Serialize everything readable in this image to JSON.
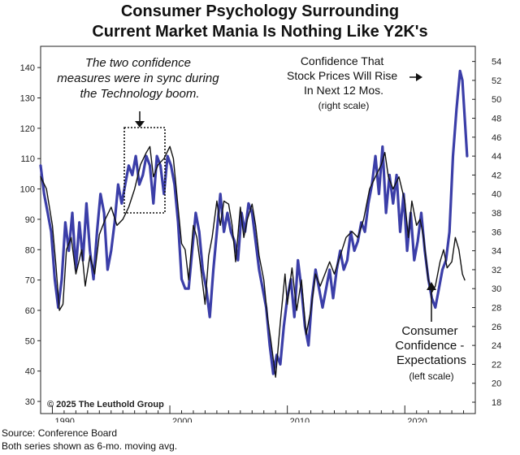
{
  "chart_data": {
    "type": "line",
    "title_line1": "Consumer Psychology Surrounding",
    "title_line2": "Current Market Mania Is Nothing Like Y2K's",
    "x_ticks": [
      "1990",
      "2000",
      "2010",
      "2020"
    ],
    "xlim": [
      1989,
      2026
    ],
    "left_axis": {
      "ticks": [
        30,
        40,
        50,
        60,
        70,
        80,
        90,
        100,
        110,
        120,
        130,
        140
      ],
      "ylim": [
        26,
        147
      ]
    },
    "right_axis": {
      "ticks": [
        18,
        20,
        22,
        24,
        26,
        28,
        30,
        32,
        34,
        36,
        38,
        40,
        42,
        44,
        46,
        48,
        50,
        52,
        54
      ],
      "ylim": [
        16.8,
        55.6
      ]
    },
    "grid": false,
    "annotation_sync": "The two confidence measures were in sync during the Technology boom.",
    "annotation_sync_lines": [
      "The two confidence",
      "measures were in sync during",
      "the Technology boom."
    ],
    "series": [
      {
        "name": "Consumer Confidence - Expectations",
        "label_lines": [
          "Consumer",
          "Confidence -",
          "Expectations"
        ],
        "scale_note": "(left scale)",
        "axis": "left",
        "color": "#111111",
        "points": [
          [
            1989.0,
            104
          ],
          [
            1989.5,
            100
          ],
          [
            1990.0,
            88
          ],
          [
            1990.3,
            75
          ],
          [
            1990.6,
            60
          ],
          [
            1990.9,
            62
          ],
          [
            1991.2,
            80
          ],
          [
            1991.6,
            84
          ],
          [
            1992.0,
            72
          ],
          [
            1992.5,
            80
          ],
          [
            1992.8,
            68
          ],
          [
            1993.2,
            78
          ],
          [
            1993.6,
            72
          ],
          [
            1994.0,
            85
          ],
          [
            1994.5,
            90
          ],
          [
            1995.0,
            94
          ],
          [
            1995.5,
            88
          ],
          [
            1996.0,
            90
          ],
          [
            1996.5,
            94
          ],
          [
            1997.0,
            100
          ],
          [
            1997.5,
            108
          ],
          [
            1998.0,
            112
          ],
          [
            1998.3,
            114
          ],
          [
            1998.6,
            104
          ],
          [
            1999.0,
            108
          ],
          [
            1999.5,
            110
          ],
          [
            2000.0,
            114
          ],
          [
            2000.3,
            110
          ],
          [
            2000.6,
            98
          ],
          [
            2001.0,
            82
          ],
          [
            2001.3,
            80
          ],
          [
            2001.6,
            70
          ],
          [
            2002.0,
            88
          ],
          [
            2002.3,
            84
          ],
          [
            2002.6,
            75
          ],
          [
            2003.0,
            62
          ],
          [
            2003.3,
            78
          ],
          [
            2003.6,
            84
          ],
          [
            2004.0,
            96
          ],
          [
            2004.3,
            88
          ],
          [
            2004.6,
            96
          ],
          [
            2005.0,
            95
          ],
          [
            2005.3,
            88
          ],
          [
            2005.6,
            76
          ],
          [
            2006.0,
            94
          ],
          [
            2006.3,
            84
          ],
          [
            2006.6,
            90
          ],
          [
            2007.0,
            95
          ],
          [
            2007.3,
            88
          ],
          [
            2007.6,
            78
          ],
          [
            2008.0,
            70
          ],
          [
            2008.3,
            58
          ],
          [
            2008.6,
            50
          ],
          [
            2009.0,
            38
          ],
          [
            2009.4,
            56
          ],
          [
            2009.8,
            72
          ],
          [
            2010.0,
            62
          ],
          [
            2010.4,
            74
          ],
          [
            2010.8,
            60
          ],
          [
            2011.2,
            70
          ],
          [
            2011.6,
            52
          ],
          [
            2012.0,
            60
          ],
          [
            2012.4,
            72
          ],
          [
            2012.8,
            68
          ],
          [
            2013.2,
            72
          ],
          [
            2013.6,
            76
          ],
          [
            2014.0,
            72
          ],
          [
            2014.5,
            78
          ],
          [
            2015.0,
            84
          ],
          [
            2015.5,
            86
          ],
          [
            2016.0,
            84
          ],
          [
            2016.5,
            90
          ],
          [
            2017.0,
            100
          ],
          [
            2017.5,
            104
          ],
          [
            2018.0,
            108
          ],
          [
            2018.3,
            112
          ],
          [
            2018.6,
            104
          ],
          [
            2019.0,
            100
          ],
          [
            2019.5,
            104
          ],
          [
            2020.0,
            96
          ],
          [
            2020.3,
            84
          ],
          [
            2020.6,
            96
          ],
          [
            2021.0,
            88
          ],
          [
            2021.3,
            90
          ],
          [
            2021.6,
            84
          ],
          [
            2022.0,
            70
          ],
          [
            2022.3,
            66
          ],
          [
            2022.6,
            68
          ],
          [
            2023.0,
            76
          ],
          [
            2023.3,
            80
          ],
          [
            2023.6,
            74
          ],
          [
            2024.0,
            76
          ],
          [
            2024.3,
            84
          ],
          [
            2024.6,
            80
          ],
          [
            2024.9,
            72
          ],
          [
            2025.1,
            70
          ]
        ]
      },
      {
        "name": "Confidence That Stock Prices Will Rise In Next 12 Mos.",
        "label_lines": [
          "Confidence That",
          "Stock Prices Will Rise",
          "In Next 12 Mos."
        ],
        "scale_note": "(right scale)",
        "axis": "right",
        "color": "#3b3ea8",
        "points": [
          [
            1989.0,
            43
          ],
          [
            1989.3,
            40
          ],
          [
            1989.6,
            38
          ],
          [
            1989.9,
            36
          ],
          [
            1990.2,
            31
          ],
          [
            1990.5,
            28
          ],
          [
            1990.8,
            31
          ],
          [
            1991.1,
            37
          ],
          [
            1991.4,
            34
          ],
          [
            1991.7,
            38
          ],
          [
            1992.0,
            32
          ],
          [
            1992.3,
            37
          ],
          [
            1992.6,
            33
          ],
          [
            1992.9,
            39
          ],
          [
            1993.2,
            34
          ],
          [
            1993.5,
            31
          ],
          [
            1993.8,
            36
          ],
          [
            1994.1,
            40
          ],
          [
            1994.4,
            38
          ],
          [
            1994.7,
            32
          ],
          [
            1995.0,
            34
          ],
          [
            1995.3,
            37
          ],
          [
            1995.6,
            41
          ],
          [
            1995.9,
            39
          ],
          [
            1996.2,
            41
          ],
          [
            1996.5,
            43
          ],
          [
            1996.8,
            42
          ],
          [
            1997.1,
            44
          ],
          [
            1997.4,
            41
          ],
          [
            1997.7,
            42
          ],
          [
            1998.0,
            44
          ],
          [
            1998.3,
            43
          ],
          [
            1998.6,
            39
          ],
          [
            1998.9,
            44
          ],
          [
            1999.2,
            43
          ],
          [
            1999.5,
            40
          ],
          [
            1999.8,
            44
          ],
          [
            2000.1,
            43
          ],
          [
            2000.4,
            41
          ],
          [
            2000.7,
            37
          ],
          [
            2001.0,
            31
          ],
          [
            2001.3,
            30
          ],
          [
            2001.6,
            30
          ],
          [
            2001.9,
            34
          ],
          [
            2002.2,
            38
          ],
          [
            2002.5,
            36
          ],
          [
            2002.8,
            32
          ],
          [
            2003.1,
            30
          ],
          [
            2003.4,
            27
          ],
          [
            2003.7,
            32
          ],
          [
            2004.0,
            36
          ],
          [
            2004.3,
            40
          ],
          [
            2004.6,
            36
          ],
          [
            2004.9,
            38
          ],
          [
            2005.2,
            36
          ],
          [
            2005.5,
            35
          ],
          [
            2005.8,
            33
          ],
          [
            2006.1,
            38
          ],
          [
            2006.4,
            36
          ],
          [
            2006.7,
            39
          ],
          [
            2007.0,
            38
          ],
          [
            2007.3,
            35
          ],
          [
            2007.6,
            32
          ],
          [
            2007.9,
            30
          ],
          [
            2008.2,
            28
          ],
          [
            2008.5,
            24
          ],
          [
            2008.8,
            21
          ],
          [
            2009.1,
            23
          ],
          [
            2009.4,
            22
          ],
          [
            2009.7,
            26
          ],
          [
            2010.0,
            29
          ],
          [
            2010.3,
            31
          ],
          [
            2010.6,
            27
          ],
          [
            2010.9,
            33
          ],
          [
            2011.2,
            30
          ],
          [
            2011.5,
            26
          ],
          [
            2011.8,
            24
          ],
          [
            2012.1,
            29
          ],
          [
            2012.4,
            32
          ],
          [
            2012.7,
            30
          ],
          [
            2013.0,
            28
          ],
          [
            2013.3,
            30
          ],
          [
            2013.6,
            32
          ],
          [
            2013.9,
            29
          ],
          [
            2014.2,
            32
          ],
          [
            2014.5,
            34
          ],
          [
            2014.8,
            32
          ],
          [
            2015.1,
            33
          ],
          [
            2015.4,
            36
          ],
          [
            2015.7,
            34
          ],
          [
            2016.0,
            35
          ],
          [
            2016.3,
            37
          ],
          [
            2016.6,
            36
          ],
          [
            2016.9,
            39
          ],
          [
            2017.2,
            41
          ],
          [
            2017.5,
            44
          ],
          [
            2017.8,
            40
          ],
          [
            2018.1,
            45
          ],
          [
            2018.4,
            38
          ],
          [
            2018.7,
            42
          ],
          [
            2019.0,
            39
          ],
          [
            2019.3,
            42
          ],
          [
            2019.6,
            36
          ],
          [
            2019.9,
            40
          ],
          [
            2020.2,
            34
          ],
          [
            2020.5,
            38
          ],
          [
            2020.8,
            33
          ],
          [
            2021.1,
            35
          ],
          [
            2021.4,
            38
          ],
          [
            2021.7,
            34
          ],
          [
            2022.0,
            31
          ],
          [
            2022.3,
            29
          ],
          [
            2022.6,
            28
          ],
          [
            2022.9,
            30
          ],
          [
            2023.2,
            32
          ],
          [
            2023.5,
            33
          ],
          [
            2023.8,
            36
          ],
          [
            2024.1,
            44
          ],
          [
            2024.4,
            49
          ],
          [
            2024.7,
            53
          ],
          [
            2024.9,
            52
          ],
          [
            2025.1,
            48
          ],
          [
            2025.3,
            44
          ]
        ]
      }
    ]
  },
  "copyright": "© 2025 The Leuthold Group",
  "footer": {
    "source": "Source: Conference Board",
    "note": "Both series shown as 6-mo. moving avg."
  }
}
